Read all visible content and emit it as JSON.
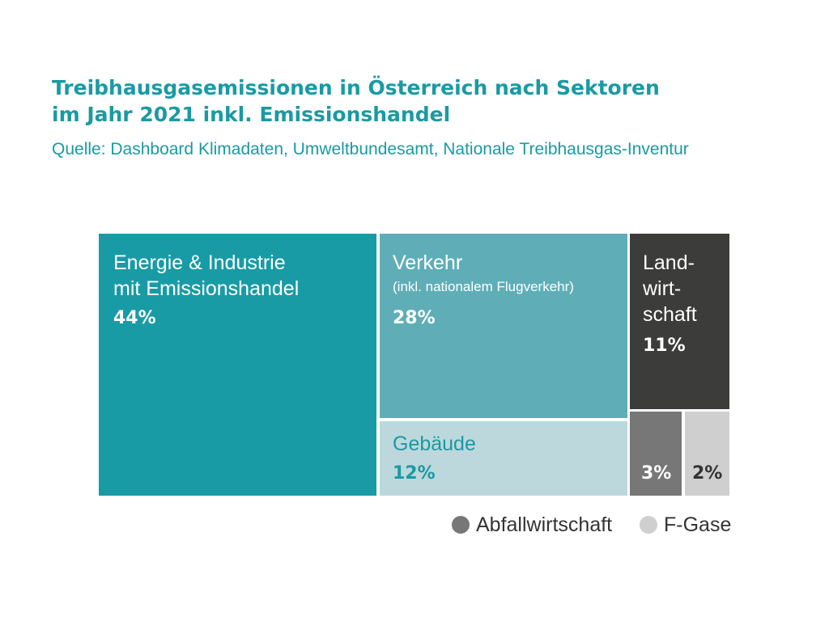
{
  "header": {
    "title_line1": "Treibhausgasemissionen in Österreich nach Sektoren",
    "title_line2": "im Jahr 2021 inkl. Emissionshandel",
    "source": "Quelle: Dashboard Klimadaten, Umweltbundesamt, Nationale Treibhausgas-Inventur"
  },
  "colors": {
    "title": "#1a9aa3",
    "energie": "#199ba5",
    "verkehr": "#5faeb7",
    "gebaeude": "#bcd8dc",
    "landwirtschaft": "#3c3c3b",
    "abfall": "#777777",
    "fgase": "#cfcfcf"
  },
  "chart_data": {
    "type": "treemap",
    "title": "Treibhausgasemissionen in Österreich nach Sektoren im Jahr 2021 inkl. Emissionshandel",
    "unit": "%",
    "items": [
      {
        "key": "energie",
        "name": "Energie & Industrie\nmit Emissionshandel",
        "value": 44,
        "value_label": "44%"
      },
      {
        "key": "verkehr",
        "name": "Verkehr",
        "note": "(inkl. nationalem Flugverkehr)",
        "value": 28,
        "value_label": "28%"
      },
      {
        "key": "gebaeude",
        "name": "Gebäude",
        "value": 12,
        "value_label": "12%"
      },
      {
        "key": "landwirtschaft",
        "name": "Land-\nwirt-\nschaft",
        "value": 11,
        "value_label": "11%"
      },
      {
        "key": "abfall",
        "name": "Abfallwirtschaft",
        "value": 3,
        "value_label": "3%"
      },
      {
        "key": "fgase",
        "name": "F-Gase",
        "value": 2,
        "value_label": "2%"
      }
    ],
    "legend": [
      "Abfallwirtschaft",
      "F-Gase"
    ],
    "legend_position": "bottom-right"
  }
}
